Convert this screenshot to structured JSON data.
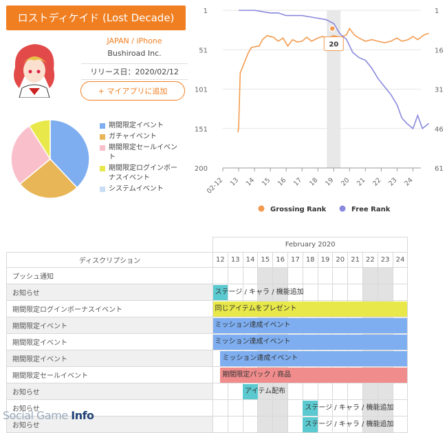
{
  "app": {
    "title": "ロストディケイド (Lost Decade)",
    "platform": "JAPAN / iPhone",
    "publisher": "Bushiroad Inc.",
    "release": "リリース日：2020/02/12",
    "add_button": "マイアプリに追加",
    "add_icon": "+"
  },
  "event_pie": {
    "legend": [
      {
        "label": "期間限定イベント",
        "color": "#7eaef0"
      },
      {
        "label": "ガチャイベント",
        "color": "#e8b656"
      },
      {
        "label": "期間限定セールイベント",
        "color": "#f9c0cb"
      },
      {
        "label": "期間限定ログインボーナスイベント",
        "color": "#e8e84a"
      },
      {
        "label": "システムイベント",
        "color": "#c9def5"
      }
    ],
    "shares": [
      0.38,
      0.26,
      0.27,
      0.09,
      0.0
    ]
  },
  "chart_data": {
    "type": "line",
    "x_ticks": [
      "02-12",
      "13",
      "14",
      "15",
      "16",
      "17",
      "18",
      "19",
      "20",
      "21",
      "22",
      "23",
      "24"
    ],
    "left_axis": {
      "ticks": [
        "1",
        "51",
        "101",
        "151",
        "200"
      ],
      "range": [
        1,
        200
      ]
    },
    "right_axis": {
      "ticks": [
        "1",
        "16",
        "31",
        "46",
        "61"
      ],
      "range": [
        1,
        61
      ]
    },
    "tooltip": "20",
    "highlight_x": "19",
    "series": [
      {
        "name": "Grossing Rank",
        "color": "#f39a4e",
        "axis": "left",
        "points": [
          [
            0.95,
            155
          ],
          [
            1.0,
            150
          ],
          [
            1.1,
            80
          ],
          [
            1.3,
            70
          ],
          [
            1.6,
            55
          ],
          [
            1.8,
            48
          ],
          [
            2.0,
            47
          ],
          [
            2.3,
            46
          ],
          [
            2.5,
            38
          ],
          [
            2.8,
            33
          ],
          [
            3.2,
            35
          ],
          [
            3.5,
            40
          ],
          [
            3.8,
            36
          ],
          [
            4.1,
            46
          ],
          [
            4.4,
            38
          ],
          [
            4.7,
            41
          ],
          [
            5.0,
            40
          ],
          [
            5.3,
            35
          ],
          [
            5.6,
            40
          ],
          [
            6.0,
            36
          ],
          [
            6.3,
            34
          ],
          [
            6.6,
            36
          ],
          [
            7.0,
            33
          ],
          [
            7.4,
            35
          ],
          [
            7.8,
            32
          ],
          [
            8.0,
            24
          ],
          [
            8.3,
            32
          ],
          [
            8.6,
            36
          ],
          [
            9.0,
            40
          ],
          [
            9.4,
            38
          ],
          [
            9.8,
            40
          ],
          [
            10.2,
            42
          ],
          [
            10.6,
            40
          ],
          [
            11.0,
            36
          ],
          [
            11.3,
            40
          ],
          [
            11.7,
            38
          ],
          [
            12.0,
            34
          ],
          [
            12.3,
            38
          ],
          [
            12.7,
            32
          ],
          [
            13.0,
            30
          ]
        ]
      },
      {
        "name": "Free Rank",
        "color": "#8888dd",
        "axis": "right",
        "points": [
          [
            1.0,
            1
          ],
          [
            2.0,
            1
          ],
          [
            2.5,
            1.5
          ],
          [
            3.0,
            2
          ],
          [
            3.5,
            2
          ],
          [
            4.0,
            3
          ],
          [
            4.5,
            3
          ],
          [
            5.0,
            3
          ],
          [
            5.5,
            3.5
          ],
          [
            6.0,
            4
          ],
          [
            6.5,
            4.5
          ],
          [
            7.0,
            6
          ],
          [
            7.4,
            10
          ],
          [
            7.8,
            12
          ],
          [
            8.2,
            17
          ],
          [
            8.6,
            19
          ],
          [
            9.0,
            20
          ],
          [
            9.4,
            23
          ],
          [
            9.8,
            27
          ],
          [
            10.2,
            30
          ],
          [
            10.6,
            33
          ],
          [
            11.0,
            37
          ],
          [
            11.3,
            42
          ],
          [
            11.6,
            44
          ],
          [
            12.0,
            46
          ],
          [
            12.3,
            41
          ],
          [
            12.6,
            46
          ],
          [
            13.0,
            44
          ]
        ]
      }
    ],
    "legend": [
      {
        "label": "Grossing Rank",
        "color": "#f39a4e"
      },
      {
        "label": "Free Rank",
        "color": "#8888dd"
      }
    ]
  },
  "schedule": {
    "month": "February 2020",
    "desc_header": "ディスクリプション",
    "days": [
      "12",
      "13",
      "14",
      "15",
      "16",
      "17",
      "18",
      "19",
      "20",
      "21",
      "22",
      "23",
      "24"
    ],
    "weekend_days": [
      "15",
      "16",
      "22",
      "23"
    ],
    "rows": [
      {
        "label": "プッシュ通知",
        "bar": null
      },
      {
        "label": "お知らせ",
        "bar": {
          "text": "ステージ / キャラ / 機能追加",
          "start": 0,
          "end": 1,
          "color": "#5bcad0"
        }
      },
      {
        "label": "期間限定ログインボーナスイベント",
        "bar": {
          "text": "同じアイテムをプレゼント",
          "start": 0,
          "end": 13,
          "color": "#e8e84a"
        }
      },
      {
        "label": "期間限定イベント",
        "bar": {
          "text": "ミッション達成イベント",
          "start": 0,
          "end": 13,
          "color": "#7eaef0"
        }
      },
      {
        "label": "期間限定イベント",
        "bar": {
          "text": "ミッション達成イベント",
          "start": 0,
          "end": 13,
          "color": "#7eaef0"
        }
      },
      {
        "label": "期間限定イベント",
        "bar": {
          "text": "ミッション達成イベント",
          "start": 0.5,
          "end": 13,
          "color": "#7eaef0"
        }
      },
      {
        "label": "期間限定セールイベント",
        "bar": {
          "text": "期間限定パック / 商品",
          "start": 0.5,
          "end": 13,
          "color": "#f08c8c"
        }
      },
      {
        "label": "お知らせ",
        "bar": {
          "text": "アイテム配布",
          "start": 2,
          "end": 3,
          "color": "#5bcad0"
        }
      },
      {
        "label": "お知らせ",
        "bar": {
          "text": "ステージ / キャラ / 機能追加",
          "start": 6,
          "end": 7,
          "color": "#5bcad0"
        }
      },
      {
        "label": "お知らせ",
        "bar": {
          "text": "ステージ / キャラ / 機能追加",
          "start": 6,
          "end": 7,
          "color": "#5bcad0"
        }
      }
    ]
  },
  "watermark": {
    "prefix": "Social Game ",
    "suffix": "Info"
  }
}
